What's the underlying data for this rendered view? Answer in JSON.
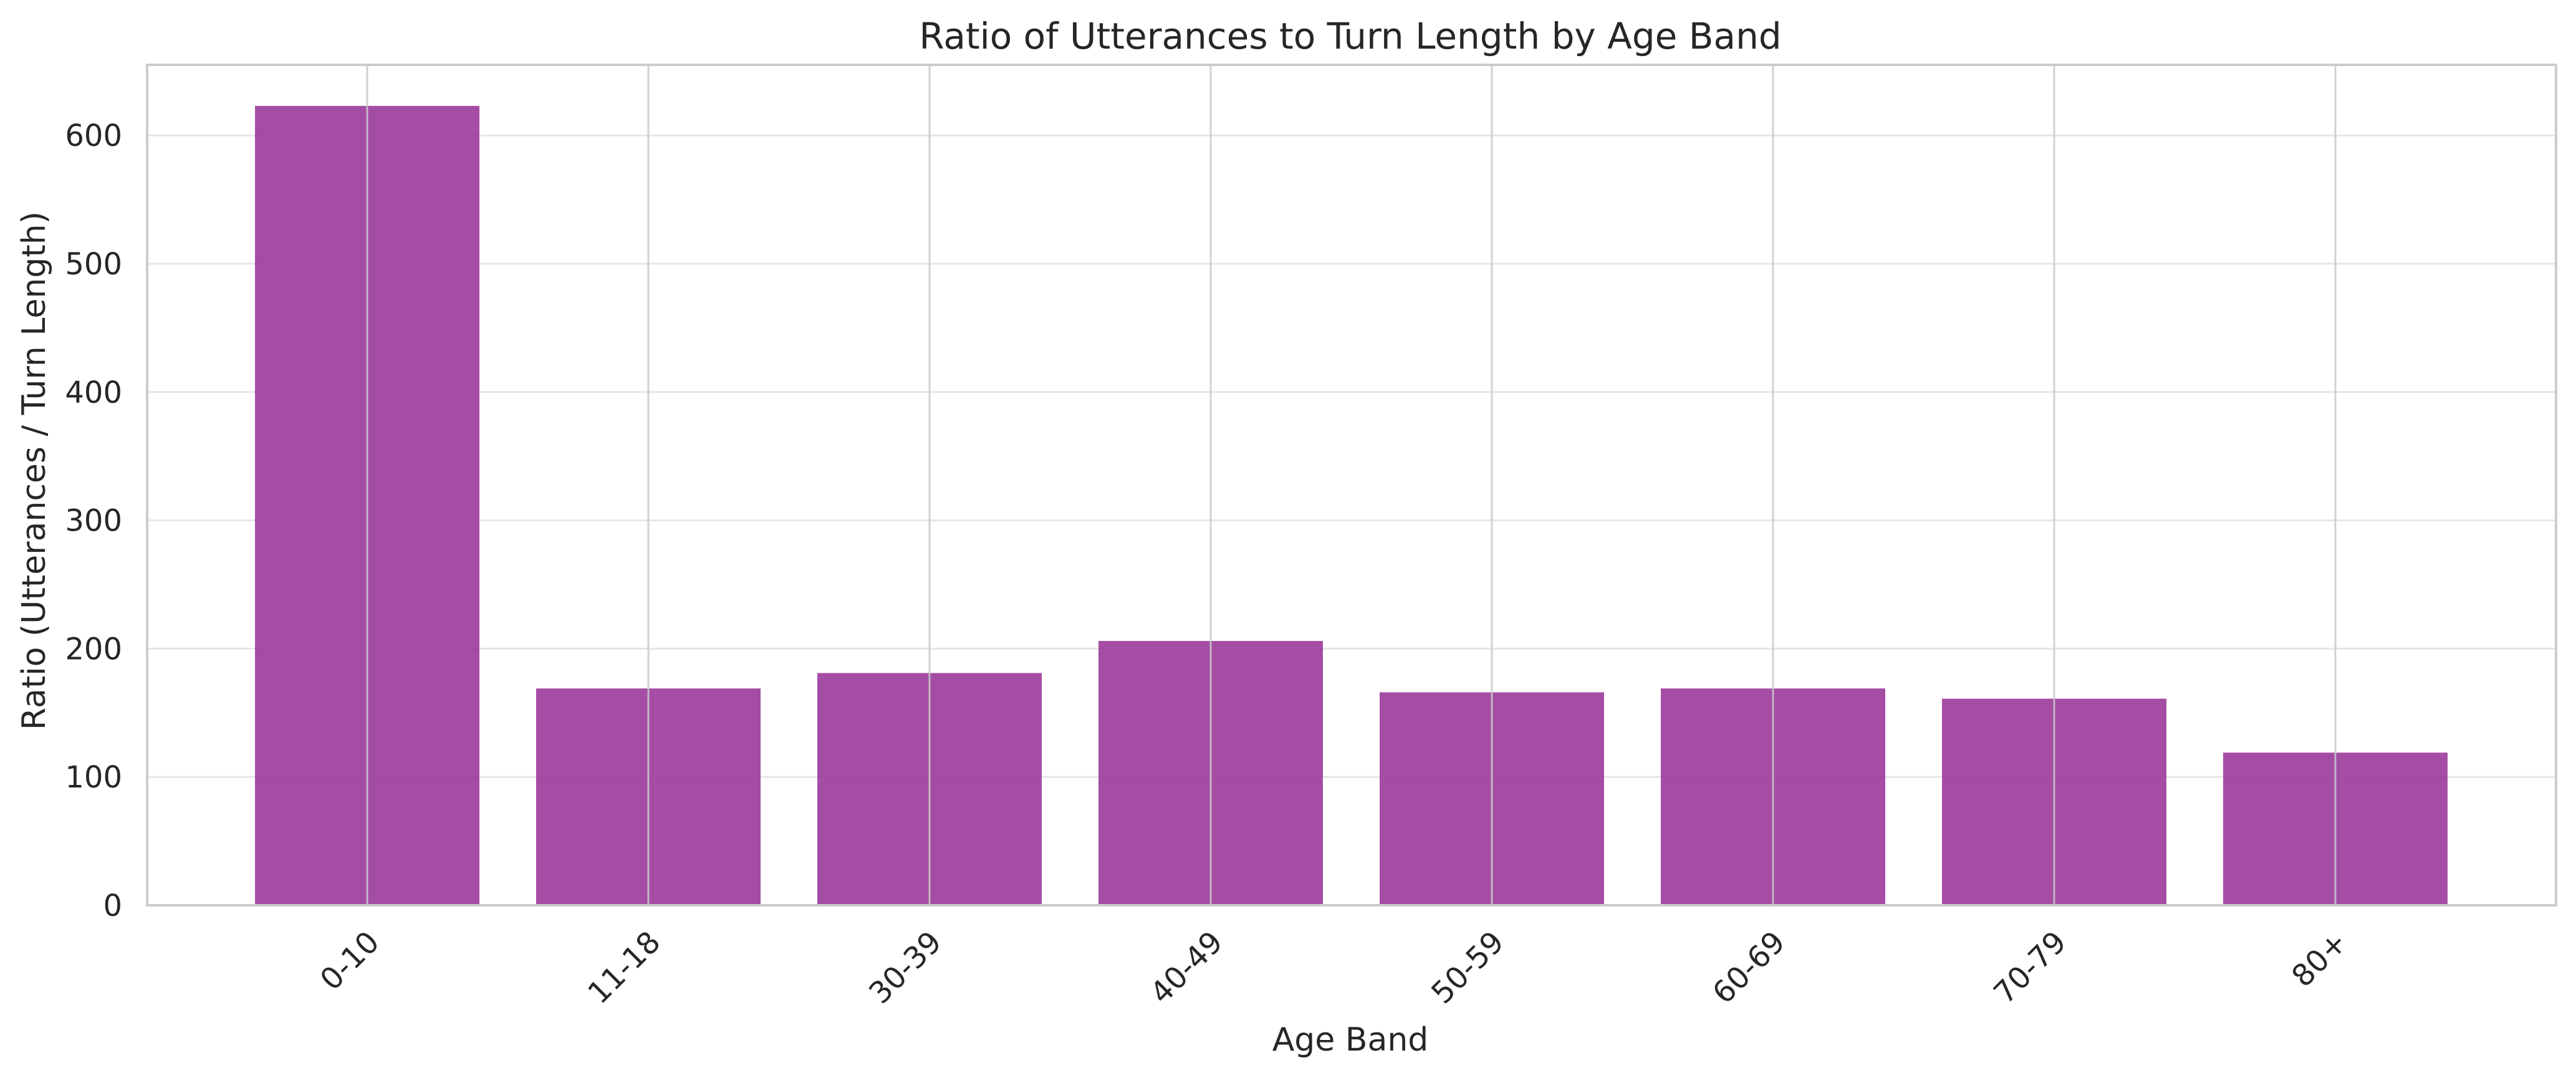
{
  "chart_data": {
    "type": "bar",
    "title": "Ratio of Utterances to Turn Length by Age Band",
    "xlabel": "Age Band",
    "ylabel": "Ratio (Utterances / Turn Length)",
    "categories": [
      "0-10",
      "11-18",
      "30-39",
      "40-49",
      "50-59",
      "60-69",
      "70-79",
      "80+"
    ],
    "values": [
      623,
      169,
      181,
      206,
      166,
      169,
      161,
      119
    ],
    "ylim": [
      0,
      655
    ],
    "yticks": [
      0,
      100,
      200,
      300,
      400,
      500,
      600
    ],
    "grid": true,
    "legend": "none",
    "bar_color": "#9b3a9b",
    "bar_opacity": 0.9,
    "grid_color": "#e6e6e6",
    "vgrid_color": "#c9c9c9",
    "spine_color": "#cccccc"
  }
}
